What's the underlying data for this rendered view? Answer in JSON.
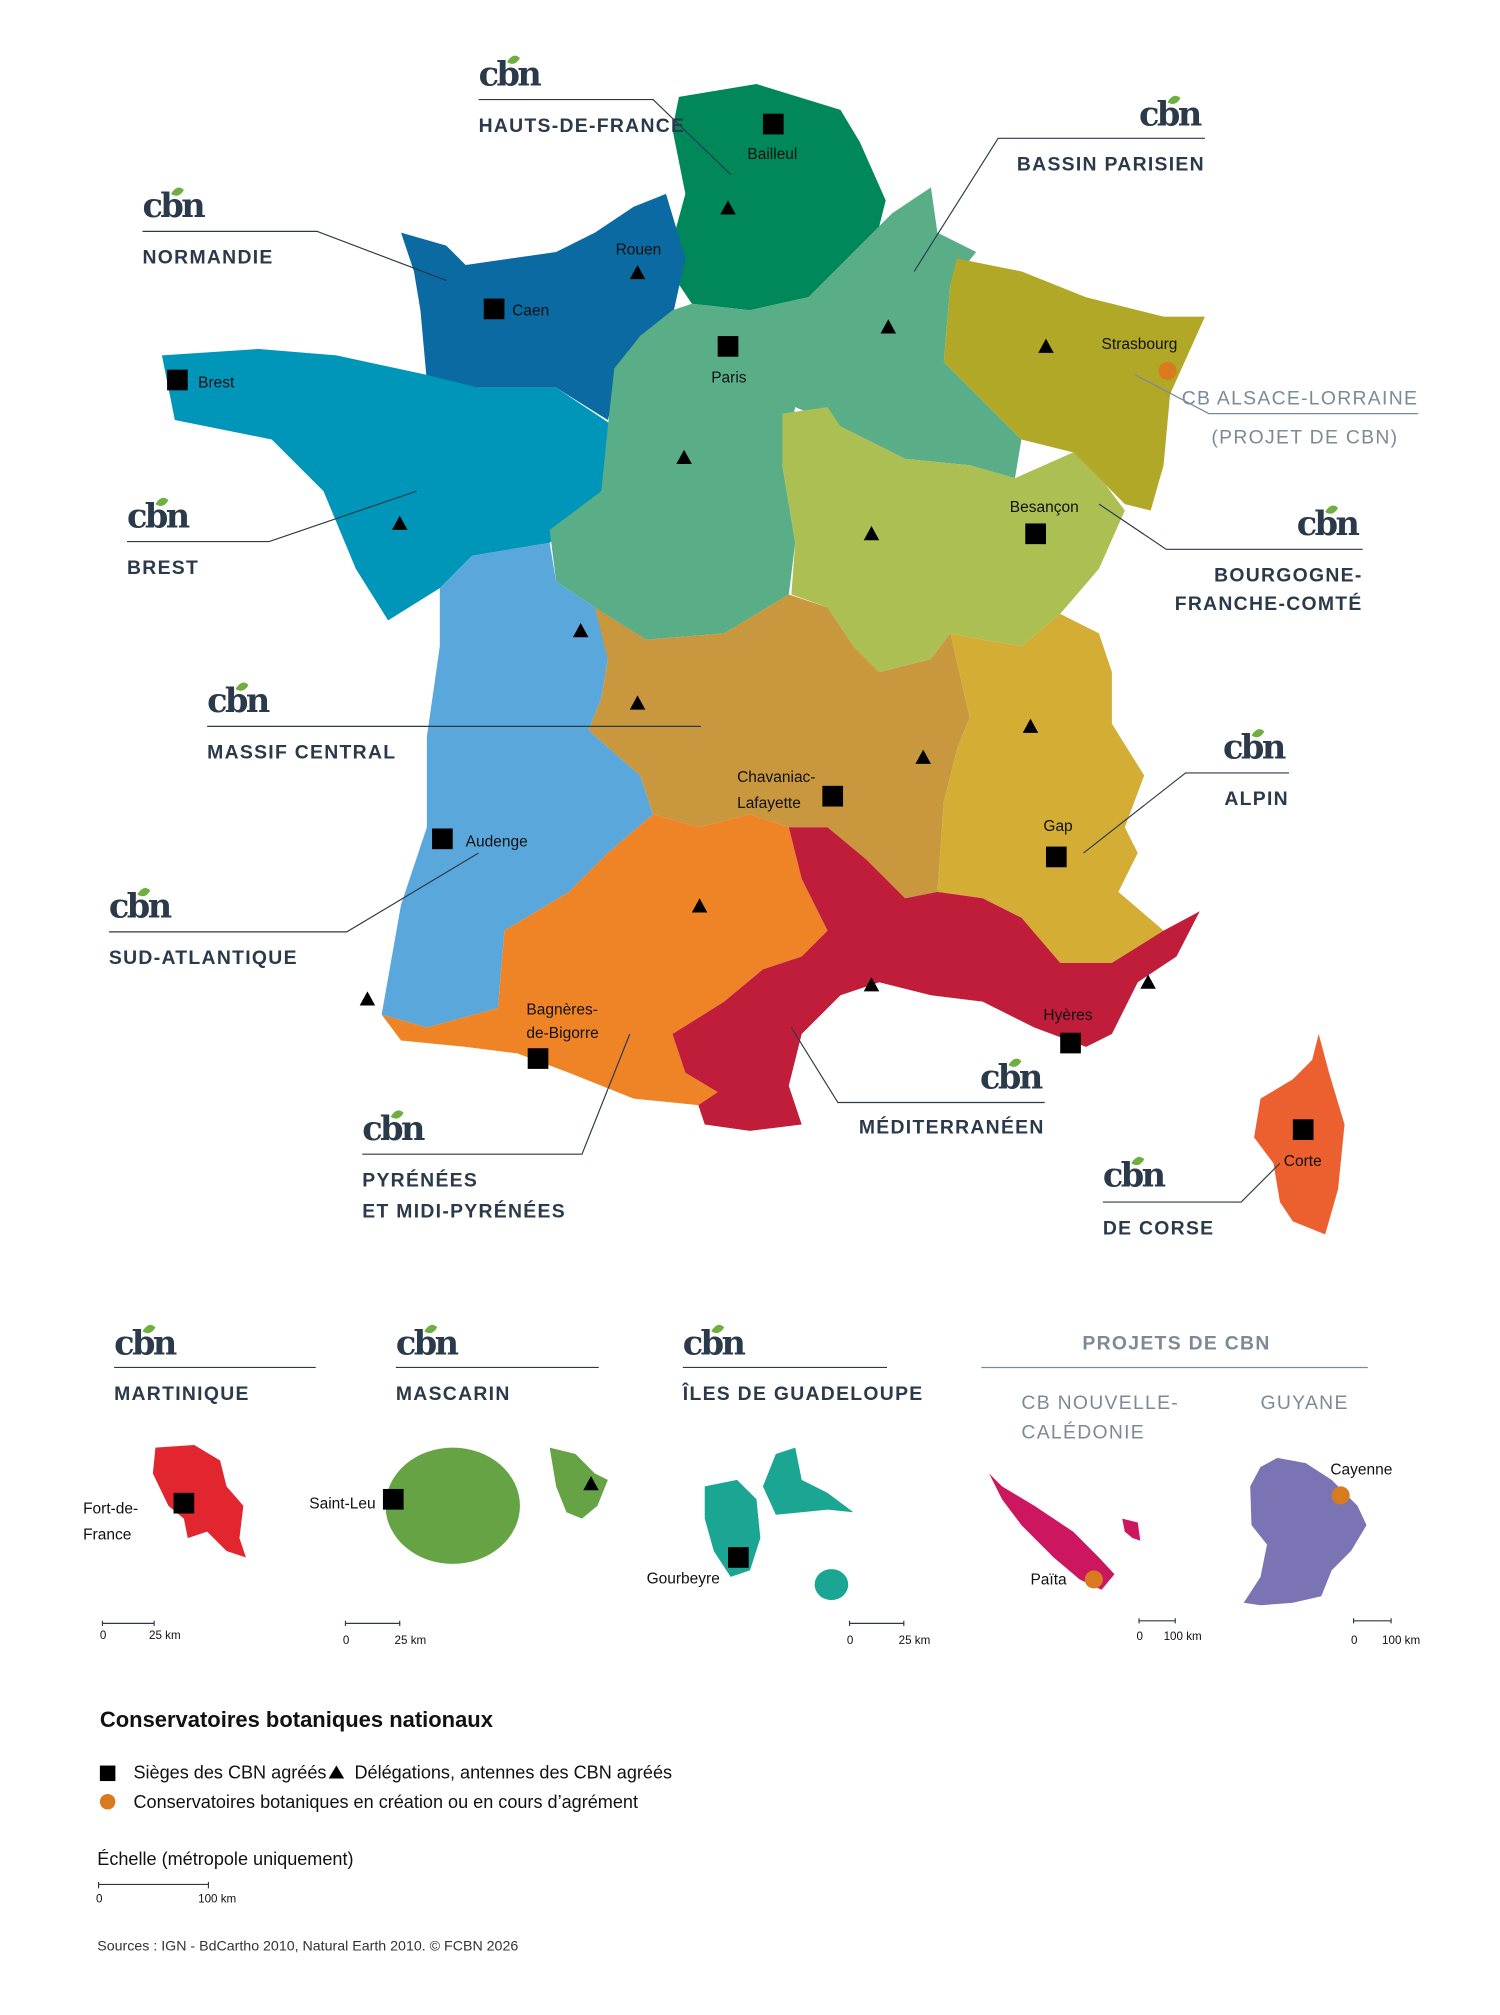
{
  "logo_text": "cbn",
  "colors": {
    "hauts_de_france": "#00875a",
    "normandie": "#0a6aa1",
    "brest": "#0096b9",
    "bassin_parisien": "#5aae87",
    "alsace_lorraine": "#b2a828",
    "bourgogne_franche_comte": "#abbf52",
    "sud_atlantique": "#5aa7dc",
    "massif_central": "#c8973e",
    "alpin": "#d4ad35",
    "pyrenees": "#ef8427",
    "mediterraneen": "#c01d3b",
    "corse": "#ec5f2e",
    "martinique": "#e2262f",
    "mascarin": "#65a345",
    "guadeloupe": "#1aa692",
    "nouvelle_caledonie": "#cc1760",
    "guyane": "#7b74b4",
    "in_creation": "#d97a1f",
    "text": "#2b3a4a"
  },
  "regions": {
    "hauts_de_france": "HAUTS-DE-FRANCE",
    "bassin_parisien": "BASSIN PARISIEN",
    "normandie": "NORMANDIE",
    "alsace_lorraine": [
      "CB ALSACE-LORRAINE",
      "(PROJET DE CBN)"
    ],
    "brest": "BREST",
    "bourgogne_franche_comte": [
      "BOURGOGNE-",
      "FRANCHE-COMTÉ"
    ],
    "massif_central": "MASSIF CENTRAL",
    "alpin": "ALPIN",
    "sud_atlantique": "SUD-ATLANTIQUE",
    "mediterraneen": "MÉDITERRANÉEN",
    "pyrenees": [
      "PYRÉNÉES",
      "ET MIDI-PYRÉNÉES"
    ],
    "corse": "DE CORSE"
  },
  "cities": {
    "bailleul": "Bailleul",
    "rouen": "Rouen",
    "caen": "Caen",
    "paris": "Paris",
    "brest": "Brest",
    "strasbourg": "Strasbourg",
    "besancon": "Besançon",
    "chavaniac": [
      "Chavaniac-",
      "Lafayette"
    ],
    "gap": "Gap",
    "audenge": "Audenge",
    "bagneres": [
      "Bagnères-",
      "de-Bigorre"
    ],
    "hyeres": "Hyères",
    "corte": "Corte"
  },
  "overseas": {
    "martinique": {
      "title": "MARTINIQUE",
      "city": [
        "Fort-de-",
        "France"
      ],
      "scale": [
        "0",
        "25 km"
      ]
    },
    "mascarin": {
      "title": "MASCARIN",
      "city": "Saint-Leu",
      "scale": [
        "0",
        "25 km"
      ]
    },
    "guadeloupe": {
      "title": "ÎLES DE GUADELOUPE",
      "city": "Gourbeyre",
      "scale": [
        "0",
        "25 km"
      ]
    },
    "projects_title": "PROJETS DE CBN",
    "nouvelle_caledonie": {
      "title": [
        "CB NOUVELLE-",
        "CALÉDONIE"
      ],
      "city": "Païta",
      "scale": [
        "0",
        "100 km"
      ]
    },
    "guyane": {
      "title": "GUYANE",
      "city": "Cayenne",
      "scale": [
        "0",
        "100 km"
      ]
    }
  },
  "legend": {
    "title": "Conservatoires botaniques nationaux",
    "items": [
      {
        "symbol": "square",
        "label": "Sièges des CBN agréés"
      },
      {
        "symbol": "triangle",
        "label": "Délégations, antennes des CBN agréés"
      },
      {
        "symbol": "circle",
        "label": "Conservatoires botaniques en  création ou en cours d’agrément"
      }
    ],
    "scale_title": "Échelle (métropole uniquement)",
    "scale": [
      "0",
      "100 km"
    ]
  },
  "sources": "Sources : IGN - BdCartho 2010, Natural Earth 2010. © FCBN 2026"
}
